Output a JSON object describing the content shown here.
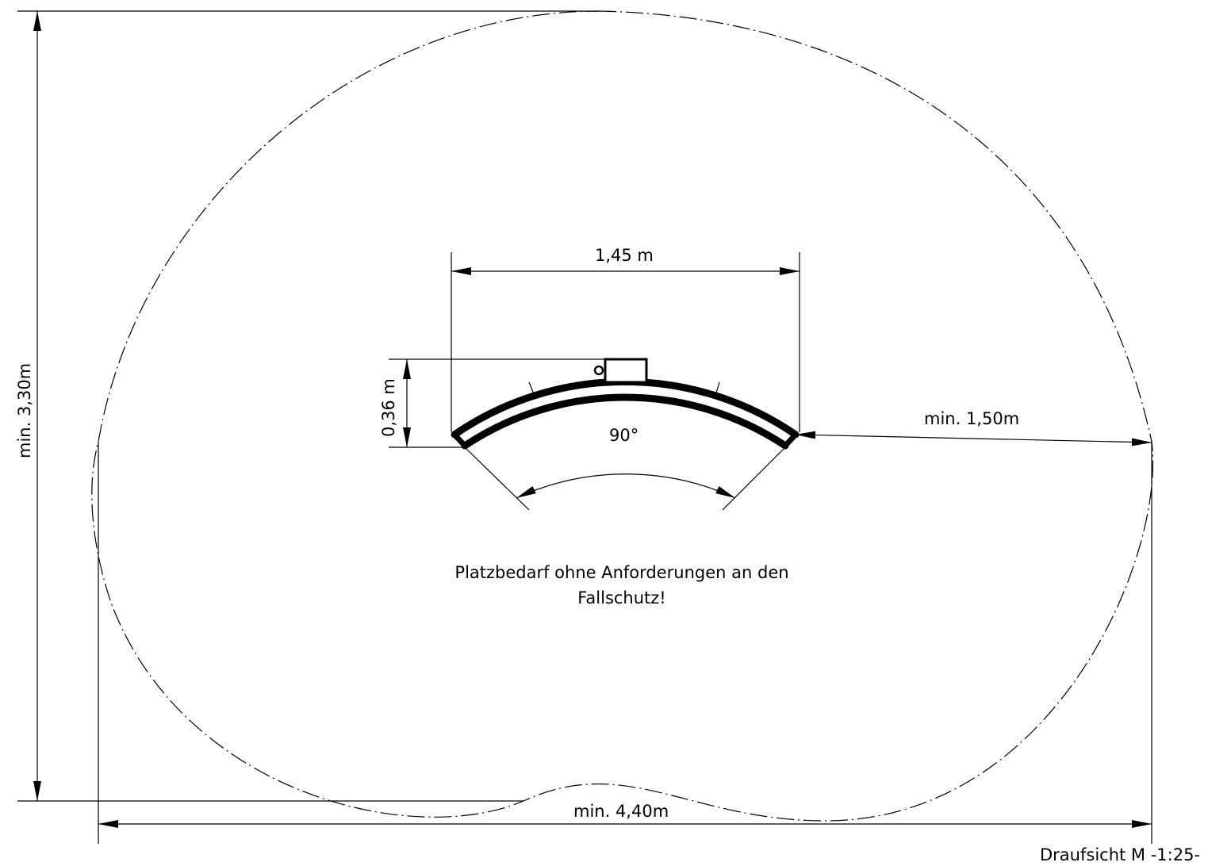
{
  "drawing": {
    "dim_width_top": "1,45 m",
    "dim_height_small": "0,36 m",
    "dim_angle": "90°",
    "dim_clearance_right": "min. 1,50m",
    "dim_total_height": "min. 3,30m",
    "dim_total_width": "min. 4,40m",
    "note_line1": "Platzbedarf ohne Anforderungen an den",
    "note_line2": "Fallschutz!",
    "view_title": "Draufsicht M -1:25-"
  }
}
